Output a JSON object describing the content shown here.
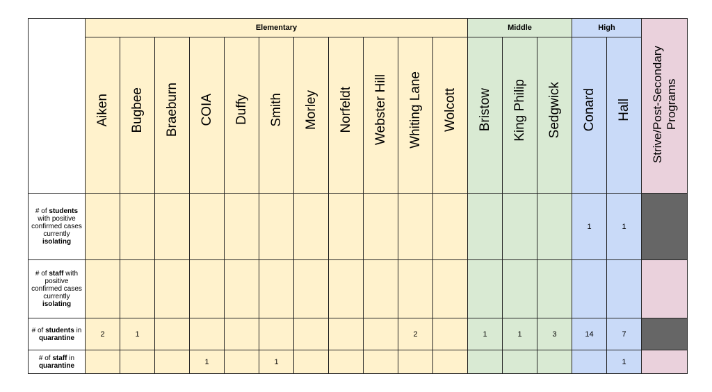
{
  "groups": [
    {
      "name": "Elementary",
      "schools": [
        "Aiken",
        "Bugbee",
        "Braeburn",
        "COIA",
        "Duffy",
        "Smith",
        "Morley",
        "Norfeldt",
        "Webster Hill",
        "Whiting Lane",
        "Wolcott"
      ],
      "color": "#fff2cc"
    },
    {
      "name": "Middle",
      "schools": [
        "Bristow",
        "King Philip",
        "Sedgwick"
      ],
      "color": "#d9ead3"
    },
    {
      "name": "High",
      "schools": [
        "Conard",
        "Hall"
      ],
      "color": "#c9daf8"
    }
  ],
  "programs": {
    "line1": "Strive/Post-Secondary",
    "line2": "Programs",
    "color": "#ead1dc",
    "shaded_color": "#666666"
  },
  "rows": [
    {
      "label_parts": [
        [
          "# of",
          false
        ],
        [
          "students",
          true
        ],
        [
          "with positive confirmed cases currently",
          false
        ],
        [
          "isolating",
          true
        ]
      ],
      "values": [
        "",
        "",
        "",
        "",
        "",
        "",
        "",
        "",
        "",
        "",
        "",
        "",
        "",
        "",
        "1",
        "1"
      ],
      "program_shaded": true
    },
    {
      "label_parts": [
        [
          "# of",
          false
        ],
        [
          "staff",
          true
        ],
        [
          "with positive confirmed cases currently",
          false
        ],
        [
          "isolating",
          true
        ]
      ],
      "values": [
        "",
        "",
        "",
        "",
        "",
        "",
        "",
        "",
        "",
        "",
        "",
        "",
        "",
        "",
        "",
        ""
      ],
      "program_shaded": false
    },
    {
      "label_parts": [
        [
          "# of",
          false
        ],
        [
          "students",
          true
        ],
        [
          "in",
          false
        ],
        [
          "quarantine",
          true
        ]
      ],
      "values": [
        "2",
        "1",
        "",
        "",
        "",
        "",
        "",
        "",
        "",
        "2",
        "",
        "1",
        "1",
        "3",
        "14",
        "7"
      ],
      "program_shaded": true
    },
    {
      "label_parts": [
        [
          "# of",
          false
        ],
        [
          "staff",
          true
        ],
        [
          "in",
          false
        ],
        [
          "quarantine",
          true
        ]
      ],
      "values": [
        "",
        "",
        "",
        "1",
        "",
        "1",
        "",
        "",
        "",
        "",
        "",
        "",
        "",
        "",
        "",
        "1"
      ],
      "program_shaded": false
    }
  ],
  "chart_data": {
    "type": "table",
    "columns": [
      "Aiken",
      "Bugbee",
      "Braeburn",
      "COIA",
      "Duffy",
      "Smith",
      "Morley",
      "Norfeldt",
      "Webster Hill",
      "Whiting Lane",
      "Wolcott",
      "Bristow",
      "King Philip",
      "Sedgwick",
      "Conard",
      "Hall",
      "Strive/Post-Secondary Programs"
    ],
    "column_groups": [
      {
        "name": "Elementary",
        "span": 11
      },
      {
        "name": "Middle",
        "span": 3
      },
      {
        "name": "High",
        "span": 2
      },
      {
        "name": "",
        "span": 1
      }
    ],
    "rows": [
      {
        "label": "# of students with positive confirmed cases currently isolating",
        "values": [
          null,
          null,
          null,
          null,
          null,
          null,
          null,
          null,
          null,
          null,
          null,
          null,
          null,
          null,
          1,
          1,
          null
        ]
      },
      {
        "label": "# of staff with positive confirmed cases currently isolating",
        "values": [
          null,
          null,
          null,
          null,
          null,
          null,
          null,
          null,
          null,
          null,
          null,
          null,
          null,
          null,
          null,
          null,
          null
        ]
      },
      {
        "label": "# of students in quarantine",
        "values": [
          2,
          1,
          null,
          null,
          null,
          null,
          null,
          null,
          null,
          2,
          null,
          1,
          1,
          3,
          14,
          7,
          null
        ]
      },
      {
        "label": "# of staff in quarantine",
        "values": [
          null,
          null,
          null,
          1,
          null,
          1,
          null,
          null,
          null,
          null,
          null,
          null,
          null,
          null,
          null,
          1,
          null
        ]
      }
    ]
  }
}
